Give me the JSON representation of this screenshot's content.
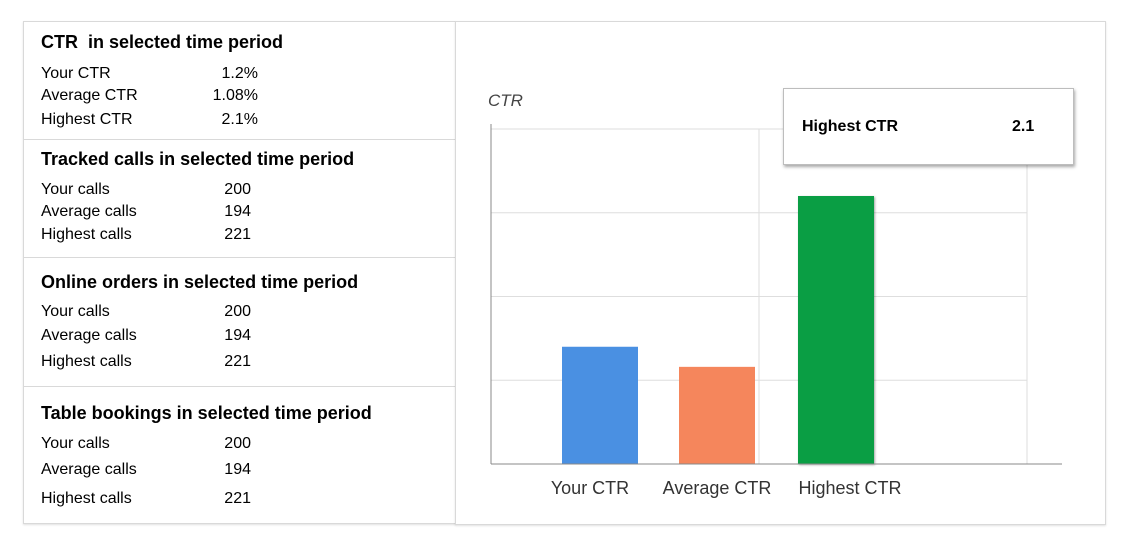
{
  "stats_panel": {
    "sections": [
      {
        "title": "CTR  in selected time period",
        "rows": [
          {
            "label": "Your CTR",
            "value": "1.2%"
          },
          {
            "label": "Average CTR",
            "value": "1.08%"
          },
          {
            "label": "Highest CTR",
            "value": "2.1%"
          }
        ]
      },
      {
        "title": "Tracked calls in selected time period",
        "rows": [
          {
            "label": "Your calls",
            "value": "200"
          },
          {
            "label": "Average calls",
            "value": "194"
          },
          {
            "label": "Highest calls",
            "value": "221"
          }
        ]
      },
      {
        "title": "Online orders in selected time period",
        "rows": [
          {
            "label": "Your calls",
            "value": "200"
          },
          {
            "label": "Average calls",
            "value": "194"
          },
          {
            "label": "Highest calls",
            "value": "221"
          }
        ]
      },
      {
        "title": "Table bookings in selected time period",
        "rows": [
          {
            "label": "Your calls",
            "value": "200"
          },
          {
            "label": "Average calls",
            "value": "194"
          },
          {
            "label": "Highest calls",
            "value": "221"
          }
        ]
      }
    ]
  },
  "chart_data": {
    "type": "bar",
    "title": "",
    "ylabel": "CTR",
    "xlabel": "",
    "categories": [
      "Your CTR",
      "Average CTR",
      "Highest CTR"
    ],
    "values": [
      1.2,
      1.08,
      2.1
    ],
    "ylim": [
      0.5,
      2.5
    ],
    "grid": true,
    "colors": [
      "#4a90e2",
      "#f5865c",
      "#0a9e44"
    ],
    "tooltip": {
      "label": "Highest CTR",
      "value": "2.1",
      "category_index": 2
    }
  }
}
